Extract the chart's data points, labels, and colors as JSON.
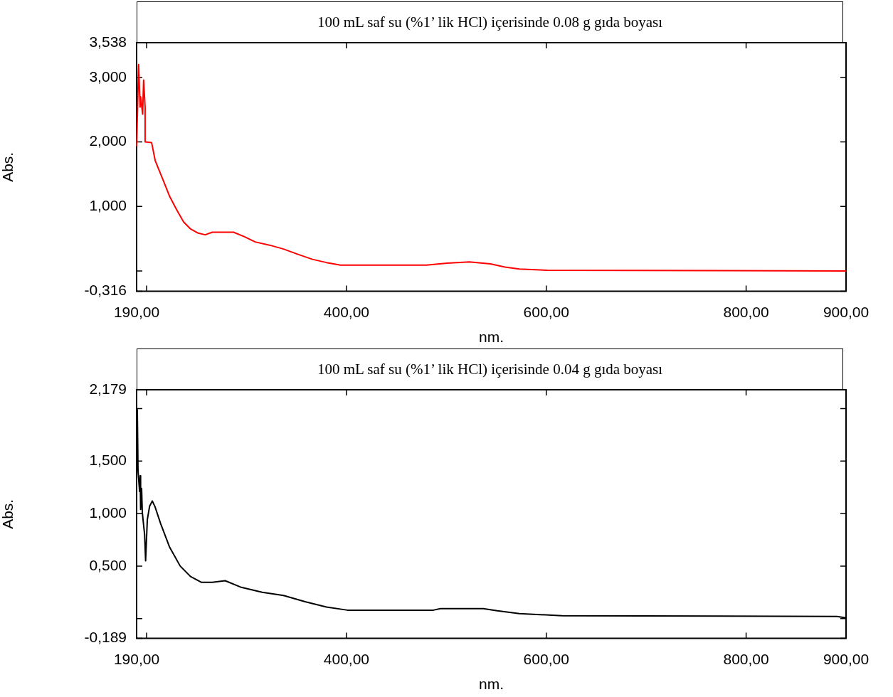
{
  "chart_data": [
    {
      "type": "line",
      "title": "100 mL saf su (%1’ lik HCl) içerisinde 0.08 g gıda boyası",
      "xlabel": "nm.",
      "ylabel": "Abs.",
      "xlim": [
        190,
        900
      ],
      "xticks": [
        {
          "value": 190,
          "label": "190,00"
        },
        {
          "value": 200,
          "label": null
        },
        {
          "value": 400,
          "label": "400,00"
        },
        {
          "value": 600,
          "label": "600,00"
        },
        {
          "value": 800,
          "label": "800,00"
        },
        {
          "value": 900,
          "label": "900,00"
        }
      ],
      "ylim": [
        -0.316,
        3.538
      ],
      "yticks": [
        {
          "value": -0.316,
          "label": "-0,316"
        },
        {
          "value": 0,
          "label": null
        },
        {
          "value": 1,
          "label": "1,000"
        },
        {
          "value": 2,
          "label": "2,000"
        },
        {
          "value": 3,
          "label": "3,000"
        },
        {
          "value": 3.538,
          "label": "3,538"
        }
      ],
      "marker": "none",
      "line_style": "solid",
      "series": [
        {
          "color": "#ff0000",
          "x": [
            190,
            192,
            193.5,
            194,
            196,
            197,
            198.5,
            198.5,
            205,
            208.6,
            215.7,
            222.9,
            230,
            237,
            244,
            251,
            258.6,
            265.7,
            287,
            298,
            308.6,
            323,
            337,
            351,
            366,
            380,
            394,
            480,
            501,
            523,
            544,
            558.6,
            573,
            601,
            900
          ],
          "values": [
            1.93,
            3.2,
            2.54,
            2.7,
            2.43,
            2.96,
            2.54,
            2.0,
            1.99,
            1.71,
            1.44,
            1.16,
            0.95,
            0.76,
            0.65,
            0.59,
            0.56,
            0.6,
            0.6,
            0.53,
            0.45,
            0.4,
            0.34,
            0.26,
            0.18,
            0.13,
            0.09,
            0.09,
            0.12,
            0.14,
            0.11,
            0.06,
            0.03,
            0.01,
            0.0
          ]
        }
      ]
    },
    {
      "type": "line",
      "title": "100 mL saf su (%1’ lik HCl) içerisinde 0.04 g gıda boyası",
      "xlabel": "nm.",
      "ylabel": "Abs.",
      "xlim": [
        190,
        900
      ],
      "xticks": [
        {
          "value": 190,
          "label": "190,00"
        },
        {
          "value": 200,
          "label": null
        },
        {
          "value": 400,
          "label": "400,00"
        },
        {
          "value": 600,
          "label": "600,00"
        },
        {
          "value": 800,
          "label": "800,00"
        },
        {
          "value": 900,
          "label": "900,00"
        }
      ],
      "ylim": [
        -0.189,
        2.179
      ],
      "yticks": [
        {
          "value": -0.189,
          "label": "-0,189"
        },
        {
          "value": 0,
          "label": null
        },
        {
          "value": 0.5,
          "label": "0,500"
        },
        {
          "value": 1,
          "label": "1,000"
        },
        {
          "value": 1.5,
          "label": "1,500"
        },
        {
          "value": 2,
          "label": null
        },
        {
          "value": 2.179,
          "label": "2,179"
        }
      ],
      "marker": "none",
      "line_style": "solid",
      "series": [
        {
          "color": "#000000",
          "x": [
            190,
            190.7,
            191.4,
            193,
            193.6,
            194,
            195,
            195.7,
            198,
            199,
            200.7,
            203,
            205.7,
            208.6,
            214,
            223,
            233.6,
            244,
            255,
            265.7,
            278.6,
            294,
            315.7,
            337,
            358.6,
            380,
            401,
            487,
            494,
            537,
            551,
            573,
            616,
            891,
            900
          ],
          "values": [
            1.48,
            1.99,
            1.41,
            1.21,
            1.36,
            1.04,
            1.24,
            1.01,
            0.8,
            0.55,
            0.94,
            1.07,
            1.12,
            1.06,
            0.905,
            0.68,
            0.5,
            0.4,
            0.345,
            0.345,
            0.36,
            0.3,
            0.25,
            0.22,
            0.16,
            0.11,
            0.08,
            0.08,
            0.095,
            0.095,
            0.074,
            0.047,
            0.027,
            0.02,
            0.007
          ]
        }
      ]
    }
  ]
}
